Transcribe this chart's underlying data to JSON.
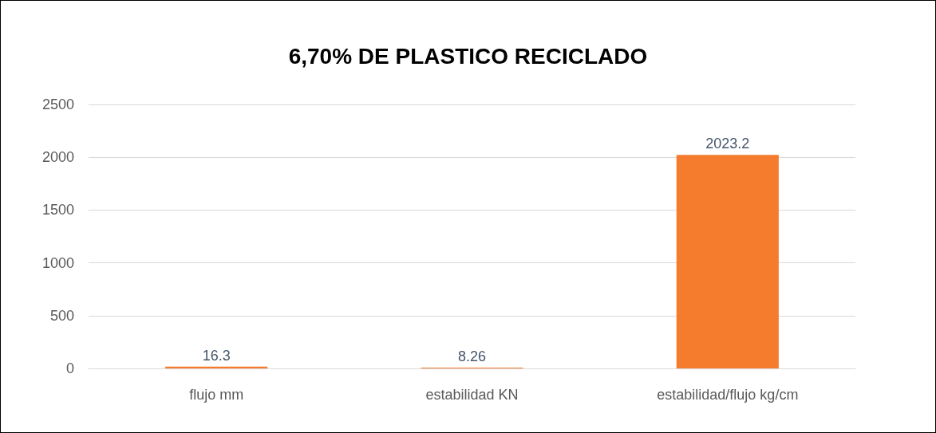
{
  "chart_data": {
    "type": "bar",
    "title": "6,70% DE PLASTICO RECICLADO",
    "categories": [
      "flujo mm",
      "estabilidad KN",
      "estabilidad/flujo kg/cm"
    ],
    "values": [
      16.3,
      8.26,
      2023.2
    ],
    "color": "#f47c2c",
    "ylim": [
      0,
      2500
    ],
    "yticks": [
      0,
      500,
      1000,
      1500,
      2000,
      2500
    ],
    "grid": "y",
    "data_labels": true
  }
}
